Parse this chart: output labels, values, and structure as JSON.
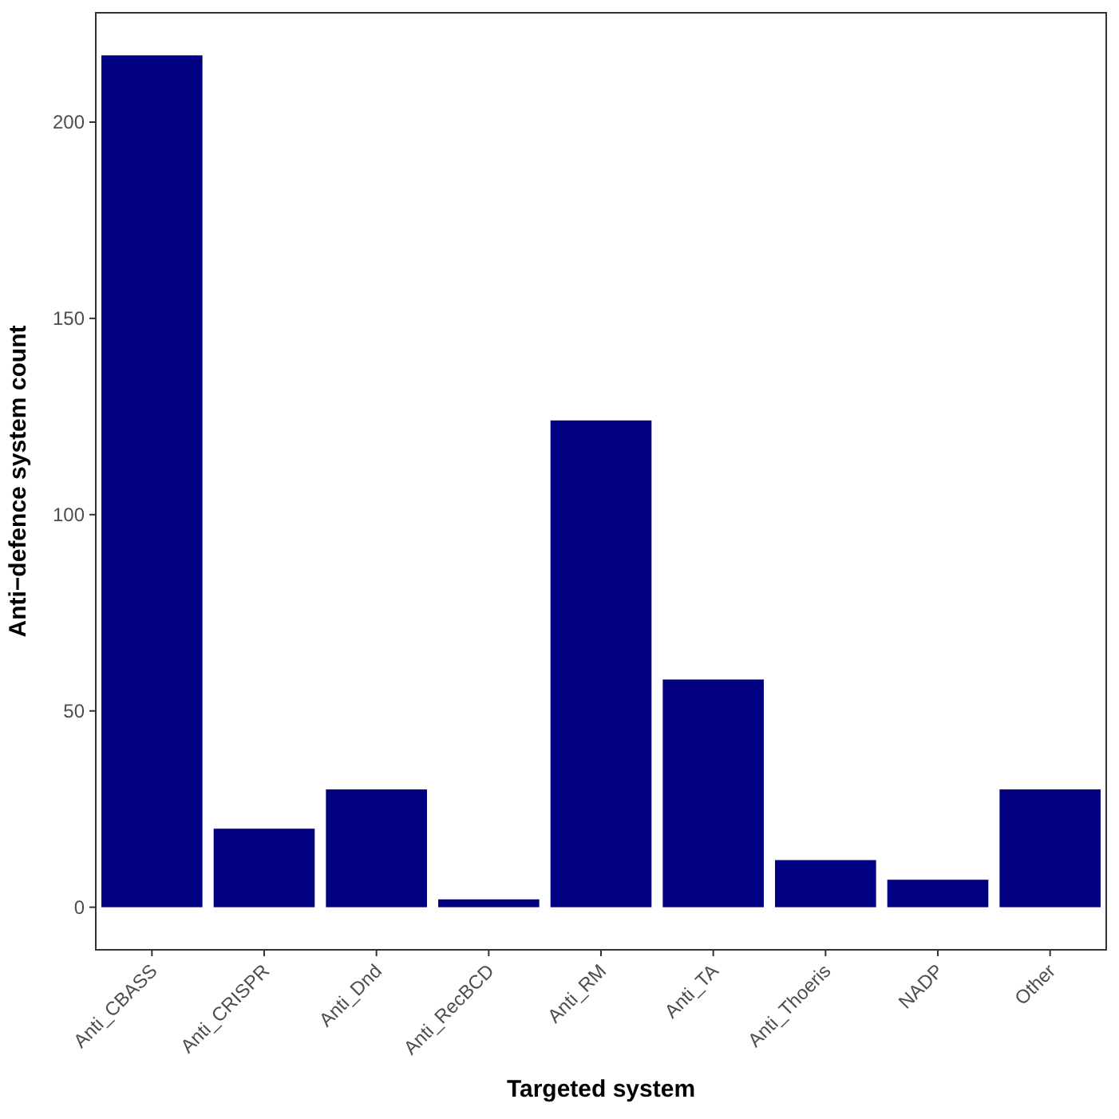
{
  "chart_data": {
    "type": "bar",
    "xlabel": "Targeted system",
    "ylabel": "Anti−defence system count",
    "categories": [
      "Anti_CBASS",
      "Anti_CRISPR",
      "Anti_Dnd",
      "Anti_RecBCD",
      "Anti_RM",
      "Anti_TA",
      "Anti_Thoeris",
      "NADP",
      "Other"
    ],
    "values": [
      217,
      20,
      30,
      2,
      124,
      58,
      12,
      7,
      30
    ],
    "color": "#000080",
    "ylim": [
      -10.85,
      227.85
    ],
    "yticks": [
      0,
      50,
      100,
      150,
      200
    ],
    "grid": false
  }
}
